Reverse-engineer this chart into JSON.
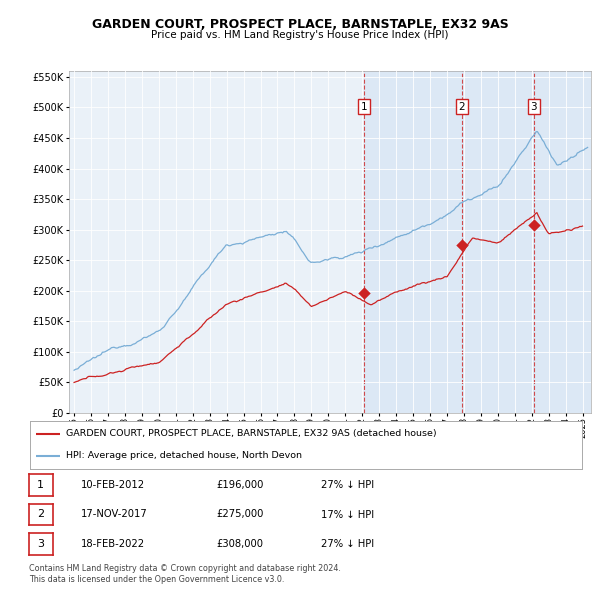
{
  "title": "GARDEN COURT, PROSPECT PLACE, BARNSTAPLE, EX32 9AS",
  "subtitle": "Price paid vs. HM Land Registry's House Price Index (HPI)",
  "hpi_color": "#7aaed6",
  "price_color": "#cc2222",
  "plot_bg": "#dce8f5",
  "plot_bg_pre": "#eaf1f8",
  "ylim": [
    0,
    560000
  ],
  "yticks": [
    0,
    50000,
    100000,
    150000,
    200000,
    250000,
    300000,
    350000,
    400000,
    450000,
    500000,
    550000
  ],
  "xlim_start": 1994.7,
  "xlim_end": 2025.5,
  "sales": [
    {
      "label": "1",
      "date_str": "10-FEB-2012",
      "year": 2012.11,
      "price": 196000,
      "pct": "27% ↓ HPI"
    },
    {
      "label": "2",
      "date_str": "17-NOV-2017",
      "year": 2017.88,
      "price": 275000,
      "pct": "17% ↓ HPI"
    },
    {
      "label": "3",
      "date_str": "18-FEB-2022",
      "year": 2022.13,
      "price": 308000,
      "pct": "27% ↓ HPI"
    }
  ],
  "legend_line1": "GARDEN COURT, PROSPECT PLACE, BARNSTAPLE, EX32 9AS (detached house)",
  "legend_line2": "HPI: Average price, detached house, North Devon",
  "footnote1": "Contains HM Land Registry data © Crown copyright and database right 2024.",
  "footnote2": "This data is licensed under the Open Government Licence v3.0."
}
